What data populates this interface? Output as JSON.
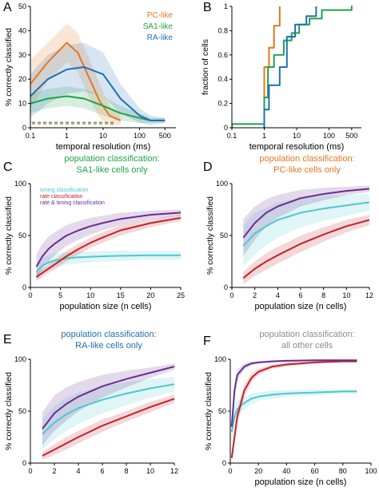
{
  "figure": {
    "background": "#ffffff",
    "axis_color": "#000000"
  },
  "colors": {
    "pc": "#E8761C",
    "sa1": "#1FA24A",
    "ra": "#1F6FB5",
    "timing": "#4FC6CF",
    "rate": "#C2222A",
    "rate_timing": "#6A2C91",
    "gray": "#8C8C8C"
  },
  "chart_data": [
    {
      "panel": "A",
      "type": "line",
      "xscale": "log",
      "xlabel": "temporal resolution (ms)",
      "ylabel": "% correctly classified",
      "xlim": [
        0.1,
        1000
      ],
      "ylim": [
        0,
        50
      ],
      "xticks": [
        0.1,
        1,
        10,
        100,
        500
      ],
      "xticklabels": [
        "0.1",
        "1",
        "10",
        "100",
        "500"
      ],
      "yticks": [
        0,
        10,
        20,
        30,
        40,
        50
      ],
      "yticklabels": [
        "0",
        "10",
        "20",
        "30",
        "40",
        "50"
      ],
      "legend": [
        "PC-like",
        "SA1-like",
        "RA-like"
      ],
      "series": [
        {
          "name": "PC-like",
          "color": "pc",
          "x": [
            0.1,
            0.3,
            1,
            2,
            4,
            8,
            15,
            30
          ],
          "y": [
            18,
            27,
            35,
            31,
            21,
            11,
            5,
            3
          ],
          "band": [
            10,
            8,
            8,
            8,
            8,
            7,
            4,
            2
          ]
        },
        {
          "name": "SA1-like",
          "color": "sa1",
          "x": [
            0.1,
            0.3,
            1,
            3,
            10,
            30,
            100,
            200,
            500
          ],
          "y": [
            10,
            12,
            13,
            12,
            9,
            6,
            4,
            3,
            3
          ],
          "band": [
            4,
            4,
            4,
            4,
            4,
            3,
            2,
            1,
            1
          ]
        },
        {
          "name": "RA-like",
          "color": "ra",
          "x": [
            0.1,
            0.3,
            1,
            3,
            10,
            30,
            100,
            200,
            500
          ],
          "y": [
            13,
            20,
            24,
            25,
            22,
            12,
            5,
            3,
            3
          ],
          "band": [
            9,
            10,
            10,
            10,
            9,
            6,
            3,
            2,
            1
          ]
        }
      ],
      "chance": 2
    },
    {
      "panel": "B",
      "type": "line",
      "xscale": "log",
      "xlabel": "temporal resolution (ms)",
      "ylabel": "fraction of cells",
      "xlim": [
        0.1,
        1000
      ],
      "ylim": [
        0,
        1
      ],
      "xticks": [
        0.1,
        1,
        10,
        100,
        500
      ],
      "xticklabels": [
        "0.1",
        "1",
        "10",
        "100",
        "500"
      ],
      "yticks": [
        0,
        0.2,
        0.4,
        0.6,
        0.8,
        1
      ],
      "yticklabels": [
        "0",
        "0.2",
        "0.4",
        "0.6",
        "0.8",
        "1"
      ],
      "series": [
        {
          "name": "PC-like",
          "color": "pc",
          "x": [
            1,
            1.4,
            2,
            3
          ],
          "y": [
            0.5,
            0.66,
            0.84,
            1
          ]
        },
        {
          "name": "SA1-like",
          "color": "sa1",
          "x": [
            0.1,
            1,
            1.3,
            2,
            4,
            7,
            12,
            25,
            60,
            500
          ],
          "y": [
            0.03,
            0.25,
            0.5,
            0.6,
            0.72,
            0.78,
            0.85,
            0.9,
            0.97,
            1
          ]
        },
        {
          "name": "RA-like",
          "color": "ra",
          "x": [
            1,
            1.4,
            3,
            5,
            9,
            20,
            40
          ],
          "y": [
            0.15,
            0.35,
            0.5,
            0.75,
            0.85,
            0.92,
            1
          ]
        }
      ]
    },
    {
      "panel": "C",
      "type": "line",
      "title_line1": "population classification:",
      "title_line2": "SA1-like cells only",
      "title_color": "sa1",
      "xlabel": "population size (n cells)",
      "ylabel": "% correctly classified",
      "xlim": [
        0,
        25
      ],
      "ylim": [
        0,
        100
      ],
      "xticks": [
        0,
        5,
        10,
        15,
        20,
        25
      ],
      "xticklabels": [
        "0",
        "5",
        "10",
        "15",
        "20",
        "25"
      ],
      "yticks": [
        0,
        50,
        100
      ],
      "yticklabels": [
        "0",
        "50",
        "100"
      ],
      "legend": [
        "timing classification",
        "rate classification",
        "rate & timing classification"
      ],
      "series": [
        {
          "name": "timing classification",
          "color": "timing",
          "x": [
            1,
            2,
            3,
            4,
            6,
            8,
            10,
            12,
            15,
            20,
            25
          ],
          "y": [
            15,
            21,
            24,
            26,
            28,
            29,
            29.5,
            30,
            30.5,
            31,
            31
          ],
          "band": [
            8,
            8,
            7,
            7,
            6,
            6,
            5,
            5,
            5,
            4,
            4
          ]
        },
        {
          "name": "rate classification",
          "color": "rate",
          "x": [
            1,
            2,
            3,
            4,
            6,
            8,
            10,
            12,
            15,
            20,
            25
          ],
          "y": [
            10,
            14,
            18,
            22,
            30,
            37,
            43,
            48,
            55,
            62,
            67
          ],
          "band": [
            4,
            4,
            4,
            5,
            5,
            5,
            5,
            5,
            5,
            4,
            3
          ]
        },
        {
          "name": "rate & timing classification",
          "color": "rate_timing",
          "x": [
            1,
            2,
            3,
            4,
            6,
            8,
            10,
            12,
            15,
            20,
            25
          ],
          "y": [
            20,
            30,
            37,
            42,
            50,
            55,
            59,
            62,
            66,
            70,
            72
          ],
          "band": [
            12,
            12,
            12,
            11,
            10,
            9,
            8,
            7,
            6,
            4,
            3
          ]
        }
      ]
    },
    {
      "panel": "D",
      "type": "line",
      "title_line1": "population classification:",
      "title_line2": "PC-like cells only",
      "title_color": "pc",
      "xlabel": "population size (n cells)",
      "ylabel": "% correctly classified",
      "xlim": [
        0,
        12
      ],
      "ylim": [
        0,
        100
      ],
      "xticks": [
        0,
        2,
        4,
        6,
        8,
        10,
        12
      ],
      "xticklabels": [
        "0",
        "2",
        "4",
        "6",
        "8",
        "10",
        "12"
      ],
      "yticks": [
        0,
        50,
        100
      ],
      "yticklabels": [
        "0",
        "50",
        "100"
      ],
      "series": [
        {
          "name": "timing classification",
          "color": "timing",
          "x": [
            1,
            2,
            3,
            4,
            6,
            8,
            10,
            12
          ],
          "y": [
            40,
            52,
            59,
            65,
            72,
            76,
            79,
            82
          ],
          "band": [
            20,
            20,
            18,
            17,
            14,
            12,
            10,
            8
          ]
        },
        {
          "name": "rate classification",
          "color": "rate",
          "x": [
            1,
            2,
            3,
            4,
            6,
            8,
            10,
            12
          ],
          "y": [
            9,
            18,
            25,
            31,
            42,
            51,
            59,
            65
          ],
          "band": [
            6,
            7,
            8,
            8,
            8,
            7,
            6,
            5
          ]
        },
        {
          "name": "rate & timing classification",
          "color": "rate_timing",
          "x": [
            1,
            2,
            3,
            4,
            6,
            8,
            10,
            12
          ],
          "y": [
            48,
            62,
            72,
            78,
            86,
            90,
            93,
            95
          ],
          "band": [
            18,
            16,
            13,
            11,
            8,
            6,
            4,
            3
          ]
        }
      ]
    },
    {
      "panel": "E",
      "type": "line",
      "title_line1": "population classification:",
      "title_line2": "RA-like cells only",
      "title_color": "ra",
      "xlabel": "",
      "ylabel": "% correctly classified",
      "xlim": [
        0,
        12
      ],
      "ylim": [
        0,
        100
      ],
      "xticks": [
        0,
        2,
        4,
        6,
        8,
        10,
        12
      ],
      "xticklabels": [
        "0",
        "2",
        "4",
        "6",
        "8",
        "10",
        "12"
      ],
      "yticks": [
        0,
        50,
        100
      ],
      "yticklabels": [
        "0",
        "50",
        "100"
      ],
      "series": [
        {
          "name": "timing classification",
          "color": "timing",
          "x": [
            1,
            2,
            3,
            4,
            6,
            8,
            10,
            12
          ],
          "y": [
            28,
            39,
            47,
            53,
            61,
            67,
            72,
            76
          ],
          "band": [
            15,
            16,
            16,
            15,
            13,
            11,
            9,
            7
          ]
        },
        {
          "name": "rate classification",
          "color": "rate",
          "x": [
            1,
            2,
            3,
            4,
            6,
            8,
            10,
            12
          ],
          "y": [
            7,
            13,
            19,
            25,
            36,
            45,
            54,
            62
          ],
          "band": [
            4,
            5,
            6,
            6,
            6,
            5,
            5,
            4
          ]
        },
        {
          "name": "rate & timing classification",
          "color": "rate_timing",
          "x": [
            1,
            2,
            3,
            4,
            6,
            8,
            10,
            12
          ],
          "y": [
            33,
            48,
            57,
            64,
            74,
            81,
            87,
            93
          ],
          "band": [
            16,
            17,
            16,
            14,
            11,
            8,
            5,
            3
          ]
        }
      ]
    },
    {
      "panel": "F",
      "type": "line",
      "title_line1": "population classification:",
      "title_line2": "all other cells",
      "title_color": "gray",
      "xlabel": "population size (n cells)",
      "ylabel": "% correctly classified",
      "xlim": [
        0,
        100
      ],
      "ylim": [
        0,
        100
      ],
      "xticks": [
        0,
        20,
        40,
        60,
        80,
        100
      ],
      "xticklabels": [
        "0",
        "20",
        "40",
        "60",
        "80",
        "100"
      ],
      "yticks": [
        0,
        50,
        100
      ],
      "yticklabels": [
        "0",
        "50",
        "100"
      ],
      "series": [
        {
          "name": "timing classification",
          "color": "timing",
          "x": [
            1,
            3,
            5,
            10,
            15,
            20,
            30,
            40,
            60,
            80,
            90
          ],
          "y": [
            30,
            45,
            52,
            58,
            62,
            64,
            66,
            67,
            68,
            69,
            69
          ],
          "band": [
            12,
            10,
            8,
            6,
            5,
            4,
            4,
            3,
            3,
            2,
            2
          ]
        },
        {
          "name": "rate classification",
          "color": "rate",
          "x": [
            1,
            3,
            5,
            10,
            15,
            20,
            30,
            40,
            60,
            80,
            90
          ],
          "y": [
            5,
            25,
            45,
            70,
            82,
            88,
            93,
            95,
            97,
            98,
            98
          ],
          "band": [
            4,
            6,
            7,
            6,
            4,
            3,
            2,
            2,
            1,
            1,
            1
          ]
        },
        {
          "name": "rate & timing classification",
          "color": "rate_timing",
          "x": [
            1,
            3,
            5,
            10,
            15,
            20,
            30,
            40,
            60,
            80,
            90
          ],
          "y": [
            35,
            70,
            85,
            93,
            96,
            97,
            98,
            98.5,
            99,
            99,
            99
          ],
          "band": [
            12,
            8,
            5,
            3,
            2,
            1,
            1,
            1,
            1,
            1,
            1
          ]
        }
      ]
    }
  ]
}
